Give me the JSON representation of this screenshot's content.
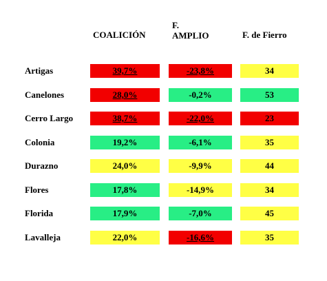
{
  "headers": {
    "coalicion": "COALICIÓN",
    "frente_amplio_line1": "F.",
    "frente_amplio_line2": "AMPLIO",
    "fierro": "F. de Fierro"
  },
  "colors": {
    "red": "#f20000",
    "green": "#28ee85",
    "yellow": "#ffff45"
  },
  "rows": [
    {
      "dept": "Artigas",
      "coalicion": {
        "value": "39,7%",
        "color": "red"
      },
      "fa": {
        "value": "-23,8%",
        "color": "red"
      },
      "ff": {
        "value": "34",
        "color": "yellow"
      }
    },
    {
      "dept": "Canelones",
      "coalicion": {
        "value": "28,0%",
        "color": "red"
      },
      "fa": {
        "value": "-0,2%",
        "color": "green"
      },
      "ff": {
        "value": "53",
        "color": "green"
      }
    },
    {
      "dept": "Cerro Largo",
      "coalicion": {
        "value": "38,7%",
        "color": "red"
      },
      "fa": {
        "value": "-22,0%",
        "color": "red"
      },
      "ff": {
        "value": "23",
        "color": "red"
      }
    },
    {
      "dept": "Colonia",
      "coalicion": {
        "value": "19,2%",
        "color": "green"
      },
      "fa": {
        "value": "-6,1%",
        "color": "green"
      },
      "ff": {
        "value": "35",
        "color": "yellow"
      }
    },
    {
      "dept": "Durazno",
      "coalicion": {
        "value": "24,0%",
        "color": "yellow"
      },
      "fa": {
        "value": "-9,9%",
        "color": "yellow"
      },
      "ff": {
        "value": "44",
        "color": "yellow"
      }
    },
    {
      "dept": "Flores",
      "coalicion": {
        "value": "17,8%",
        "color": "green"
      },
      "fa": {
        "value": "-14,9%",
        "color": "yellow"
      },
      "ff": {
        "value": "34",
        "color": "yellow"
      }
    },
    {
      "dept": "Florida",
      "coalicion": {
        "value": "17,9%",
        "color": "green"
      },
      "fa": {
        "value": "-7,0%",
        "color": "green"
      },
      "ff": {
        "value": "45",
        "color": "yellow"
      }
    },
    {
      "dept": "Lavalleja",
      "coalicion": {
        "value": "22,0%",
        "color": "yellow"
      },
      "fa": {
        "value": "-16,6%",
        "color": "red"
      },
      "ff": {
        "value": "35",
        "color": "yellow"
      }
    }
  ]
}
